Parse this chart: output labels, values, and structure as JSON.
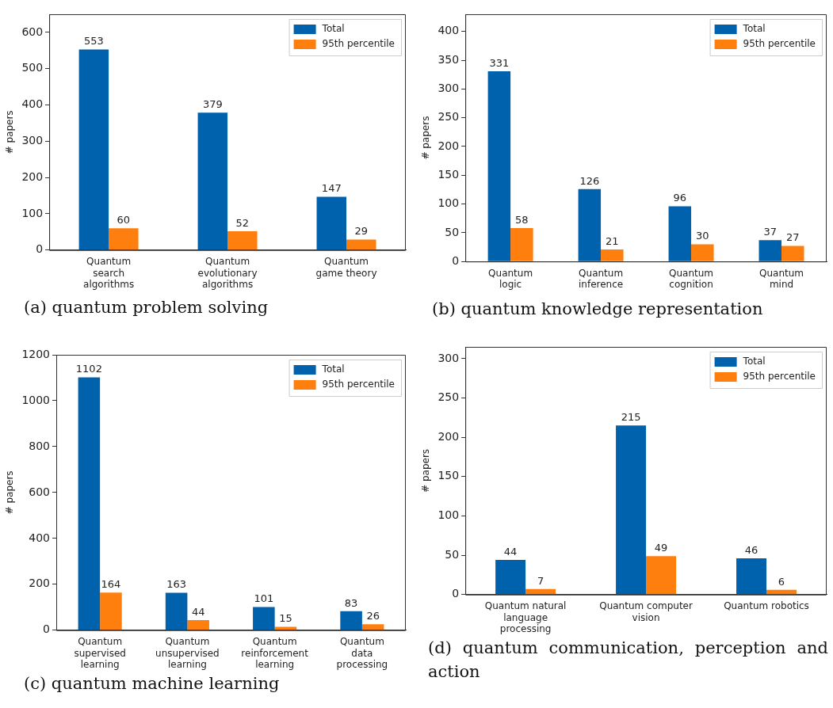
{
  "chart_data": [
    {
      "type": "bar",
      "title": "(a) quantum problem solving",
      "ylabel": "# papers",
      "categories": [
        "Quantum\nsearch\nalgorithms",
        "Quantum\nevolutionary\nalgorithms",
        "Quantum\ngame theory"
      ],
      "series": [
        {
          "name": "Total",
          "color": "#0061ad",
          "values": [
            553,
            379,
            147
          ]
        },
        {
          "name": "95th percentile",
          "color": "#ff7f0e",
          "values": [
            60,
            52,
            29
          ]
        }
      ],
      "ylim": [
        0,
        650
      ],
      "yticks": [
        0,
        100,
        200,
        300,
        400,
        500,
        600
      ],
      "data_labels": true,
      "legend": "top right",
      "grid": false
    },
    {
      "type": "bar",
      "title": "(b) quantum knowledge representation",
      "ylabel": "# papers",
      "categories": [
        "Quantum\nlogic",
        "Quantum\ninference",
        "Quantum\ncognition",
        "Quantum\nmind"
      ],
      "series": [
        {
          "name": "Total",
          "color": "#0061ad",
          "values": [
            331,
            126,
            96,
            37
          ]
        },
        {
          "name": "95th percentile",
          "color": "#ff7f0e",
          "values": [
            58,
            21,
            30,
            27
          ]
        }
      ],
      "ylim": [
        0,
        430
      ],
      "yticks": [
        0,
        50,
        100,
        150,
        200,
        250,
        300,
        350,
        400
      ],
      "data_labels": true,
      "legend": "top right",
      "grid": false
    },
    {
      "type": "bar",
      "title": "(c) quantum machine learning",
      "ylabel": "# papers",
      "categories": [
        "Quantum\nsupervised\nlearning",
        "Quantum\nunsupervised\nlearning",
        "Quantum\nreinforcement\nlearning",
        "Quantum\ndata\nprocessing"
      ],
      "series": [
        {
          "name": "Total",
          "color": "#0061ad",
          "values": [
            1102,
            163,
            101,
            83
          ]
        },
        {
          "name": "95th percentile",
          "color": "#ff7f0e",
          "values": [
            164,
            44,
            15,
            26
          ]
        }
      ],
      "ylim": [
        0,
        1200
      ],
      "yticks": [
        0,
        200,
        400,
        600,
        800,
        1000,
        1200
      ],
      "data_labels": true,
      "legend": "top right",
      "grid": false
    },
    {
      "type": "bar",
      "title": "(d) quantum communication, perception and action",
      "ylabel": "# papers",
      "categories": [
        "Quantum natural\nlanguage\nprocessing",
        "Quantum computer\nvision",
        "Quantum robotics"
      ],
      "series": [
        {
          "name": "Total",
          "color": "#0061ad",
          "values": [
            44,
            215,
            46
          ]
        },
        {
          "name": "95th percentile",
          "color": "#ff7f0e",
          "values": [
            7,
            49,
            6
          ]
        }
      ],
      "ylim": [
        0,
        315
      ],
      "yticks": [
        0,
        50,
        100,
        150,
        200,
        250,
        300
      ],
      "data_labels": true,
      "legend": "top right",
      "grid": false
    }
  ]
}
